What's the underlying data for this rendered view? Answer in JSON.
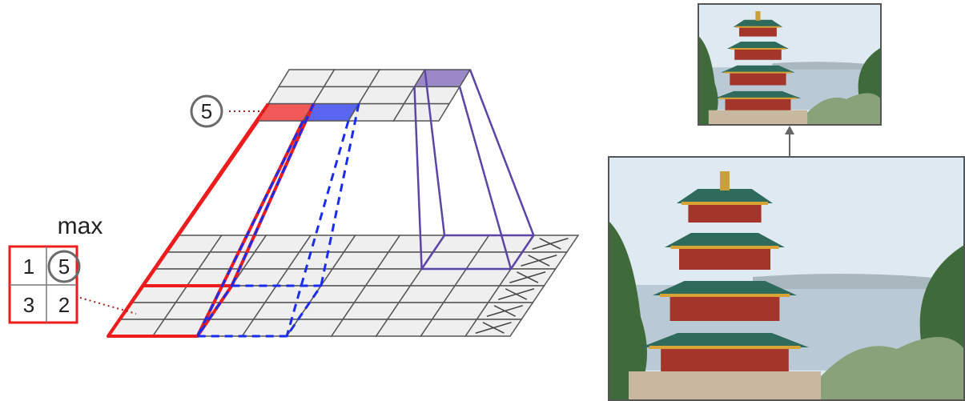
{
  "max_label": "max",
  "pool_window": [
    "1",
    "5",
    "3",
    "2"
  ],
  "pooled_output": "5",
  "photo_small": {
    "subject": "tower-pagoda-photo-downscaled",
    "sky_color": "#dfe9f2",
    "water_color": "#b9cad6",
    "roof_color": "#2f6b5c",
    "wall_color": "#a3352a",
    "tree_color": "#3f6a3a"
  },
  "photo_large": {
    "subject": "tower-pagoda-photo-original",
    "sky_color": "#dfe9f2",
    "water_color": "#b9cad6",
    "roof_color": "#2f6b5c",
    "wall_color": "#a3352a",
    "tree_color": "#3f6a3a"
  },
  "colors": {
    "red": "#ee1c1c",
    "blue": "#1a2cf0",
    "purple": "#5b45a6",
    "grid_line": "#555555",
    "cell_fill": "#efefef",
    "circle": "#6a6a6a",
    "arrow": "#666666"
  },
  "icons": [
    "x-mark-icon",
    "up-arrow-icon"
  ]
}
